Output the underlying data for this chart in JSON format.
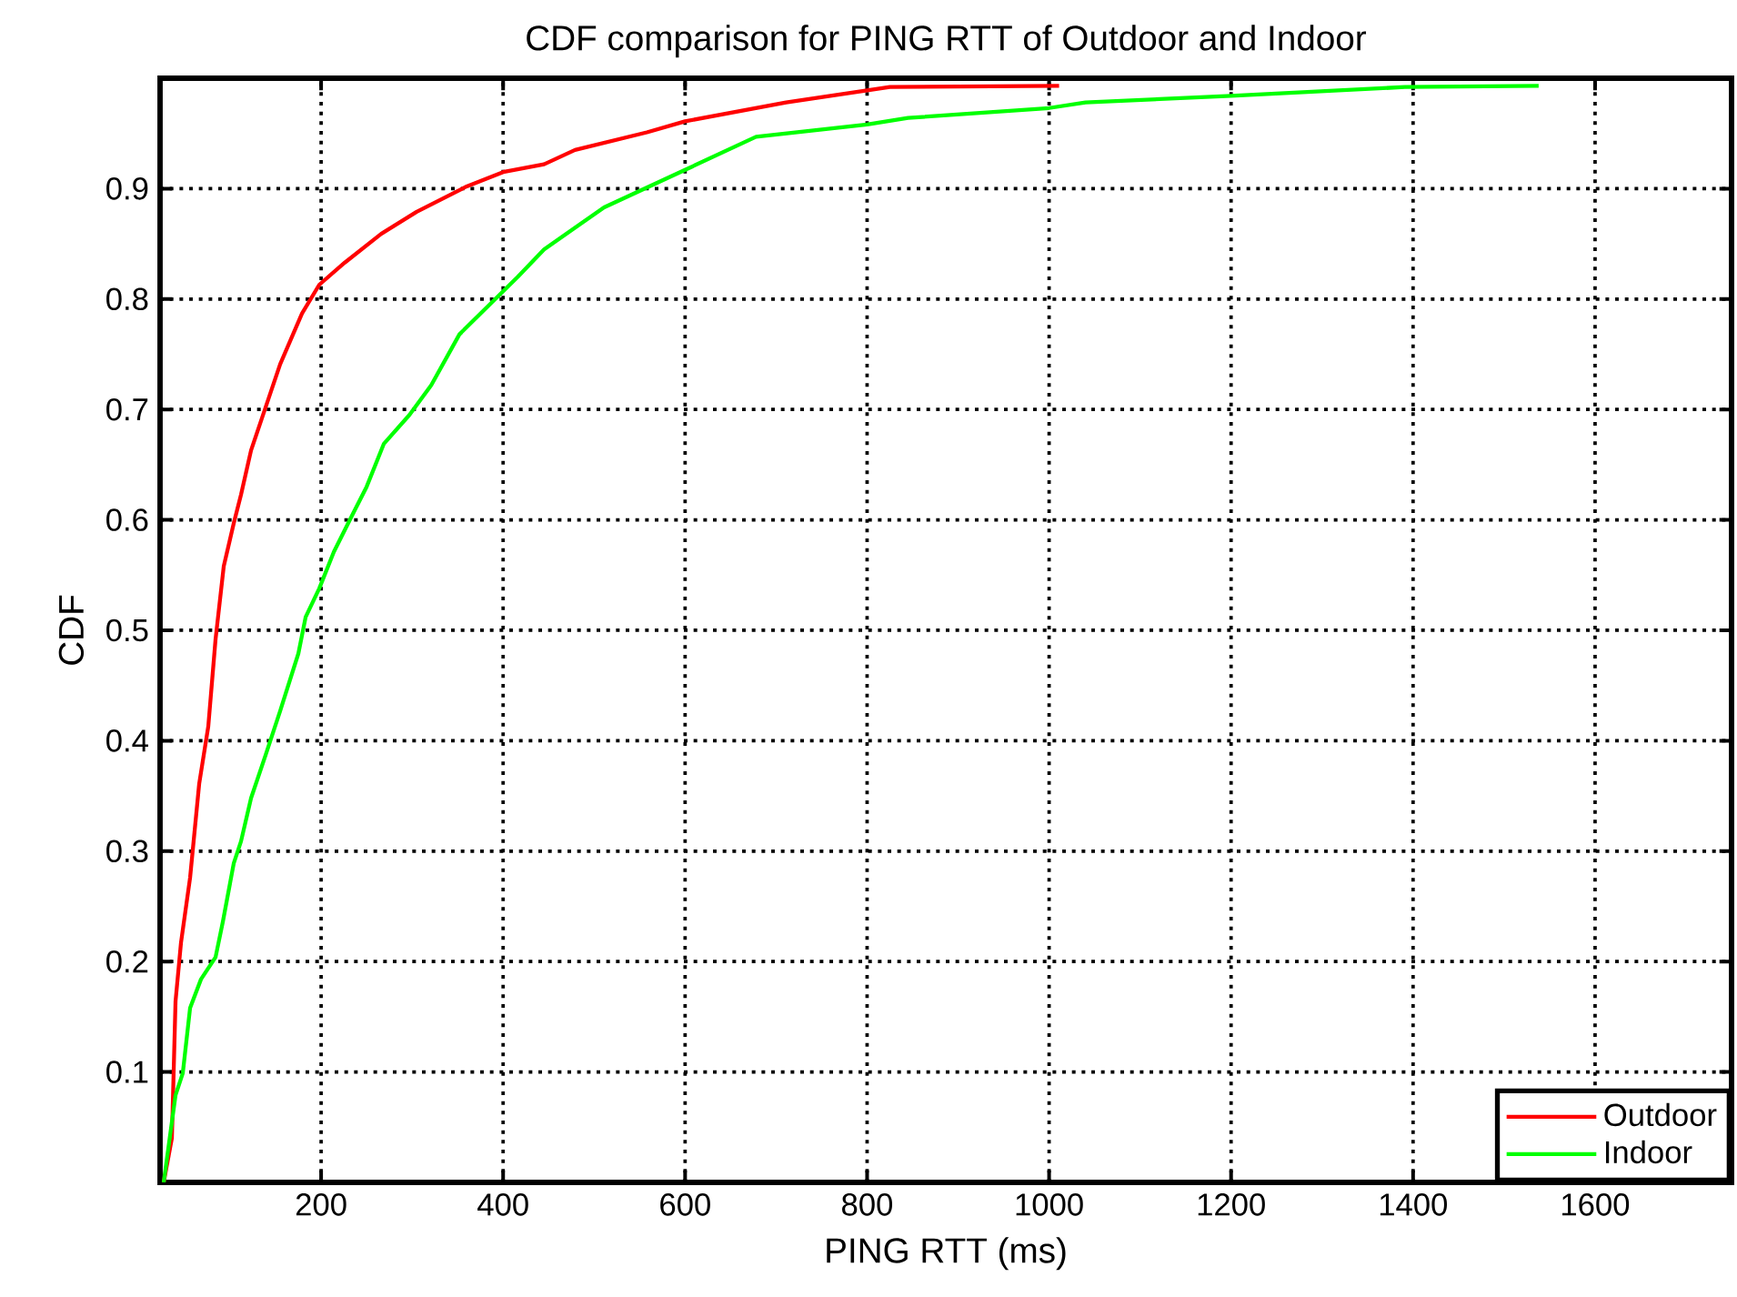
{
  "chart_data": {
    "type": "line",
    "title": "CDF comparison for PING RTT of Outdoor and Indoor",
    "xlabel": "PING RTT (ms)",
    "ylabel": "CDF",
    "xlim": [
      23,
      1750
    ],
    "ylim": [
      0,
      1
    ],
    "xticks": [
      200,
      400,
      600,
      800,
      1000,
      1200,
      1400,
      1600
    ],
    "yticks": [
      0.1,
      0.2,
      0.3,
      0.4,
      0.5,
      0.6,
      0.7,
      0.8,
      0.9
    ],
    "grid": true,
    "legend": "bottom right",
    "series": [
      {
        "name": "Outdoor",
        "color": "#ff0000",
        "x": [
          27,
          36,
          40,
          46,
          56,
          66,
          76,
          84,
          93,
          104,
          112,
          123,
          139,
          155,
          179,
          198,
          226,
          266,
          305,
          360,
          400,
          445,
          479,
          558,
          600,
          711,
          800,
          825,
          1011
        ],
        "values": [
          0,
          0.04,
          0.164,
          0.217,
          0.276,
          0.361,
          0.413,
          0.492,
          0.558,
          0.597,
          0.623,
          0.663,
          0.702,
          0.741,
          0.787,
          0.813,
          0.833,
          0.859,
          0.879,
          0.902,
          0.915,
          0.922,
          0.935,
          0.951,
          0.961,
          0.978,
          0.989,
          0.992,
          0.993
        ]
      },
      {
        "name": "Indoor",
        "color": "#00ff00",
        "x": [
          27,
          40,
          48,
          56,
          68,
          84,
          92,
          104,
          112,
          123,
          139,
          155,
          175,
          183,
          198,
          214,
          234,
          250,
          269,
          297,
          321,
          352,
          384,
          416,
          445,
          511,
          600,
          678,
          800,
          845,
          1000,
          1040,
          1200,
          1391,
          1538
        ],
        "values": [
          0,
          0.079,
          0.099,
          0.158,
          0.184,
          0.204,
          0.236,
          0.289,
          0.309,
          0.348,
          0.387,
          0.427,
          0.479,
          0.512,
          0.538,
          0.571,
          0.604,
          0.63,
          0.669,
          0.695,
          0.722,
          0.768,
          0.794,
          0.82,
          0.845,
          0.883,
          0.917,
          0.947,
          0.958,
          0.964,
          0.973,
          0.978,
          0.984,
          0.992,
          0.993
        ]
      }
    ]
  }
}
